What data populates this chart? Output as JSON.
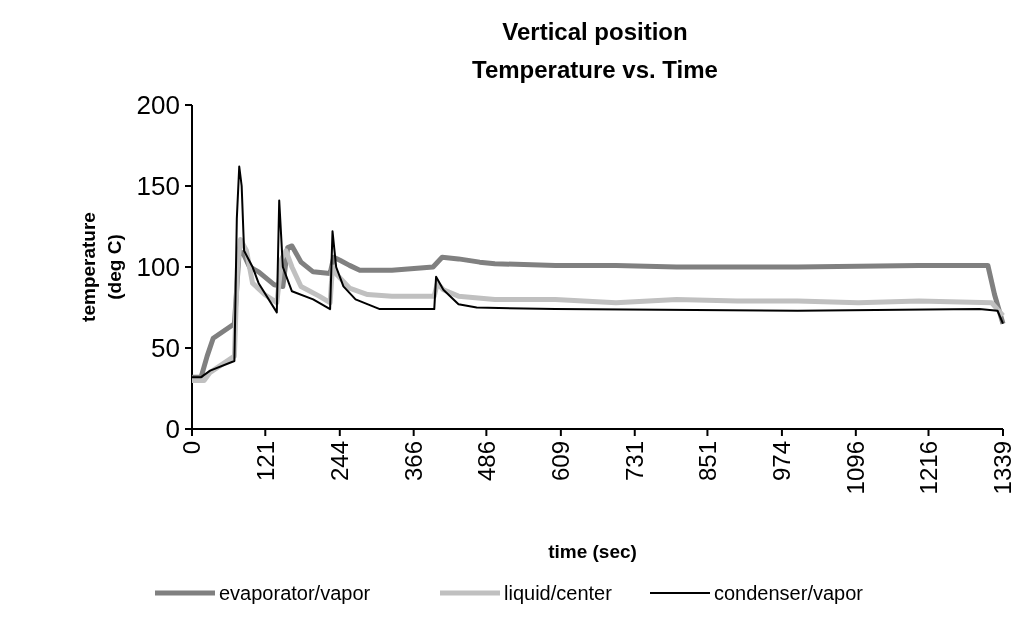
{
  "chart_data": {
    "type": "line",
    "title": "Vertical position",
    "subtitle": "Temperature vs. Time",
    "xlabel": "time (sec)",
    "ylabel": "temperature (deg C)",
    "xlim": [
      0,
      1339
    ],
    "xticks": [
      0,
      121,
      244,
      366,
      486,
      609,
      731,
      851,
      974,
      1096,
      1216,
      1339
    ],
    "ylim": [
      0,
      200
    ],
    "yticks": [
      0,
      50,
      100,
      150,
      200
    ],
    "legend": "bottom",
    "grid": false,
    "series": [
      {
        "name": "evaporator/vapor",
        "color": "#808080",
        "x": [
          0,
          15,
          25,
          35,
          70,
          78,
          85,
          95,
          110,
          136,
          150,
          158,
          165,
          180,
          200,
          228,
          234,
          245,
          260,
          277,
          330,
          398,
          413,
          440,
          475,
          500,
          600,
          700,
          800,
          1000,
          1200,
          1314,
          1325,
          1339
        ],
        "values": [
          32,
          32,
          45,
          56,
          65,
          110,
          108,
          100,
          97,
          89,
          88,
          112,
          113,
          103,
          97,
          96,
          106,
          104,
          101,
          98,
          98,
          100,
          106,
          105,
          103,
          102,
          101,
          101,
          100,
          100,
          101,
          101,
          83,
          65
        ]
      },
      {
        "name": "liquid/center",
        "color": "#c0c0c0",
        "x": [
          0,
          20,
          30,
          70,
          75,
          80,
          90,
          100,
          120,
          140,
          148,
          155,
          165,
          180,
          210,
          228,
          232,
          240,
          260,
          290,
          330,
          400,
          405,
          415,
          440,
          500,
          600,
          700,
          800,
          900,
          1000,
          1100,
          1200,
          1320,
          1339
        ],
        "values": [
          30,
          30,
          35,
          45,
          100,
          117,
          110,
          90,
          83,
          78,
          105,
          110,
          100,
          88,
          82,
          78,
          100,
          95,
          87,
          83,
          82,
          82,
          90,
          86,
          82,
          80,
          80,
          78,
          80,
          79,
          79,
          78,
          79,
          78,
          70
        ]
      },
      {
        "name": "condenser/vapor",
        "color": "#000000",
        "x": [
          0,
          15,
          30,
          70,
          74,
          78,
          82,
          86,
          100,
          110,
          140,
          144,
          150,
          165,
          200,
          228,
          232,
          238,
          250,
          270,
          310,
          400,
          403,
          415,
          440,
          470,
          600,
          1000,
          1300,
          1330,
          1339
        ],
        "values": [
          32,
          32,
          36,
          42,
          130,
          162,
          150,
          110,
          100,
          90,
          72,
          141,
          100,
          85,
          80,
          74,
          122,
          100,
          88,
          80,
          74,
          74,
          94,
          86,
          77,
          75,
          74,
          73,
          74,
          73,
          65
        ]
      }
    ]
  }
}
